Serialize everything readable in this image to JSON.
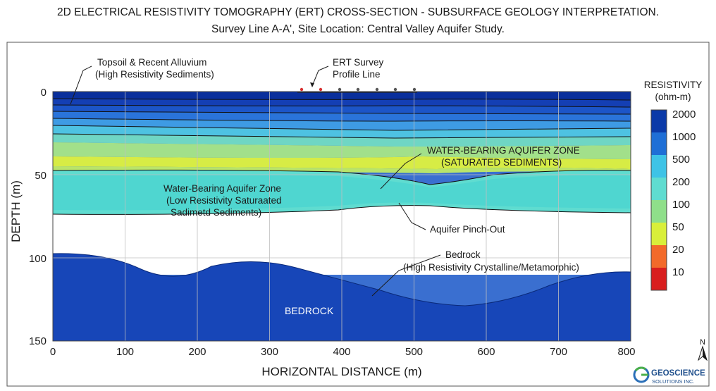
{
  "header": {
    "title": "2D ELECTRICAL RESISTIVITY TOMOGRAPHY (ERT) CROSS-SECTION - SUBSURFACE GEOLOGY INTERPRETATION.",
    "subtitle": "Survey Line A-A', Site Location: Central Valley Aquifer Study."
  },
  "axes": {
    "x_label": "HORIZONTAL DISTANCE (m)",
    "y_label": "DEPTH (m)",
    "x_ticks": [
      "0",
      "100",
      "200",
      "300",
      "400",
      "500",
      "600",
      "700",
      "800"
    ],
    "y_ticks": [
      "0",
      "50",
      "100",
      "150"
    ],
    "x_range": [
      0,
      800
    ],
    "y_range": [
      0,
      150
    ]
  },
  "annotations": {
    "topsoil": [
      "Topsoil & Recent Alluvium",
      "(High Resistivity Sediments)"
    ],
    "ert_line": [
      "ERT Survey",
      "Profile Line"
    ],
    "aquifer_upper": [
      "WATER-BEARING AQUIFER ZONE",
      "(SATURATED SEDIMENTS)"
    ],
    "aquifer_left": [
      "Water-Bearing Aquifer Zone",
      "(Low Resistivity Saturaated",
      "Sadimetd Sediments)"
    ],
    "pinch_out": "Aquifer Pinch-Out",
    "bedrock_callout": [
      "Bedrock",
      "(High Resistivity Crystalline/Metamorphic)"
    ],
    "bedrock_label": "BEDROCK"
  },
  "legend": {
    "title": [
      "RESISTIVITY",
      "(ohm-m)"
    ],
    "items": [
      {
        "label": "2000",
        "color": "#0b3aa8"
      },
      {
        "label": "1000",
        "color": "#1f6fd6"
      },
      {
        "label": "500",
        "color": "#3ec3e6"
      },
      {
        "label": "200",
        "color": "#5fdcd0"
      },
      {
        "label": "100",
        "color": "#8fdf8a"
      },
      {
        "label": "50",
        "color": "#d9ef3a"
      },
      {
        "label": "20",
        "color": "#f26a2a"
      },
      {
        "label": "10",
        "color": "#d81e1e"
      }
    ]
  },
  "north_arrow": "N",
  "logo": {
    "name": "GEOSCIENCE",
    "sub": "SOLUTIONS INC."
  }
}
